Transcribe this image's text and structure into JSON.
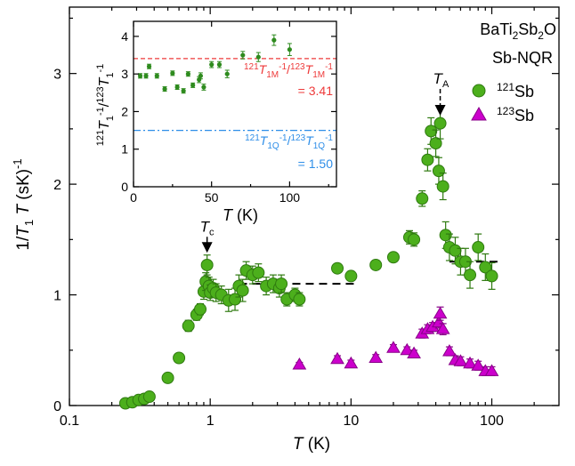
{
  "chart_data": [
    {
      "type": "scatter",
      "x_scale": "log",
      "xlim": [
        0.1,
        300
      ],
      "ylim": [
        0,
        3.6
      ],
      "xlabel": "T (K)",
      "ylabel": "1/T1T (sK)^-1",
      "x_ticks": [
        {
          "value": 0.1,
          "label": "0.1"
        },
        {
          "value": 1,
          "label": "1"
        },
        {
          "value": 10,
          "label": "10"
        },
        {
          "value": 100,
          "label": "100"
        }
      ],
      "y_ticks": [
        {
          "value": 0,
          "label": "0"
        },
        {
          "value": 1,
          "label": "1"
        },
        {
          "value": 2,
          "label": "2"
        },
        {
          "value": 3,
          "label": "3"
        }
      ],
      "annotations": {
        "compound": "BaTi2Sb2O",
        "technique": "Sb-NQR",
        "tc_label": "Tc",
        "ta_label": "TA",
        "tc_x": 0.95,
        "tc_y_tip": 1.38,
        "ta_x": 43,
        "ta_y_tip": 2.62
      },
      "series": [
        {
          "name": "121Sb",
          "marker": "circle",
          "color": "#4caf1c",
          "points": [
            [
              0.25,
              0.02,
              0.01
            ],
            [
              0.28,
              0.03,
              0.01
            ],
            [
              0.31,
              0.05,
              0.01
            ],
            [
              0.34,
              0.06,
              0.01
            ],
            [
              0.37,
              0.08,
              0.02
            ],
            [
              0.5,
              0.25,
              0.02
            ],
            [
              0.6,
              0.43,
              0.03
            ],
            [
              0.7,
              0.72,
              0.05
            ],
            [
              0.8,
              0.82,
              0.05
            ],
            [
              0.85,
              0.87,
              0.05
            ],
            [
              0.9,
              1.03,
              0.07
            ],
            [
              0.93,
              1.12,
              0.08
            ],
            [
              0.95,
              1.27,
              0.09
            ],
            [
              0.98,
              1.08,
              0.08
            ],
            [
              1.0,
              1.02,
              0.07
            ],
            [
              1.05,
              1.06,
              0.08
            ],
            [
              1.1,
              1.02,
              0.08
            ],
            [
              1.2,
              1.0,
              0.08
            ],
            [
              1.35,
              0.95,
              0.1
            ],
            [
              1.5,
              0.96,
              0.1
            ],
            [
              1.6,
              1.08,
              0.1
            ],
            [
              1.7,
              1.04,
              0.1
            ],
            [
              1.8,
              1.22,
              0.08
            ],
            [
              2.0,
              1.18,
              0.08
            ],
            [
              2.2,
              1.2,
              0.08
            ],
            [
              2.5,
              1.08,
              0.08
            ],
            [
              2.8,
              1.1,
              0.08
            ],
            [
              3.1,
              1.06,
              0.08
            ],
            [
              3.2,
              1.1,
              0.08
            ],
            [
              3.5,
              0.96,
              0.06
            ],
            [
              4.0,
              1.0,
              0.06
            ],
            [
              4.3,
              0.96,
              0.06
            ],
            [
              8.0,
              1.24,
              0.04
            ],
            [
              10.0,
              1.17,
              0.04
            ],
            [
              15.0,
              1.27,
              0.04
            ],
            [
              20.0,
              1.34,
              0.04
            ],
            [
              26.0,
              1.52,
              0.06
            ],
            [
              28.0,
              1.5,
              0.06
            ],
            [
              32.0,
              1.87,
              0.07
            ],
            [
              35.0,
              2.22,
              0.1
            ],
            [
              37.0,
              2.48,
              0.12
            ],
            [
              40.0,
              2.37,
              0.12
            ],
            [
              42.0,
              2.12,
              0.12
            ],
            [
              43.0,
              2.55,
              0.14
            ],
            [
              45.0,
              1.98,
              0.12
            ],
            [
              47.0,
              1.54,
              0.12
            ],
            [
              50.0,
              1.43,
              0.12
            ],
            [
              55.0,
              1.4,
              0.12
            ],
            [
              60.0,
              1.3,
              0.12
            ],
            [
              65.0,
              1.3,
              0.12
            ],
            [
              70.0,
              1.18,
              0.12
            ],
            [
              80.0,
              1.43,
              0.12
            ],
            [
              90.0,
              1.25,
              0.12
            ],
            [
              100.0,
              1.17,
              0.12
            ]
          ]
        },
        {
          "name": "123Sb",
          "marker": "triangle",
          "color": "#cc00cc",
          "points": [
            [
              4.3,
              0.37,
              0.02
            ],
            [
              8.0,
              0.42,
              0.03
            ],
            [
              10.0,
              0.38,
              0.03
            ],
            [
              15.0,
              0.43,
              0.03
            ],
            [
              20.0,
              0.52,
              0.03
            ],
            [
              25.0,
              0.5,
              0.03
            ],
            [
              28.0,
              0.47,
              0.03
            ],
            [
              32.0,
              0.65,
              0.04
            ],
            [
              35.0,
              0.69,
              0.04
            ],
            [
              38.0,
              0.71,
              0.04
            ],
            [
              42.0,
              0.75,
              0.05
            ],
            [
              43.0,
              0.83,
              0.06
            ],
            [
              45.0,
              0.69,
              0.05
            ],
            [
              50.0,
              0.49,
              0.04
            ],
            [
              55.0,
              0.41,
              0.04
            ],
            [
              60.0,
              0.4,
              0.04
            ],
            [
              70.0,
              0.38,
              0.04
            ],
            [
              80.0,
              0.36,
              0.04
            ],
            [
              90.0,
              0.31,
              0.04
            ],
            [
              100.0,
              0.31,
              0.04
            ]
          ]
        }
      ],
      "guide_lines": [
        {
          "x": [
            1.6,
            10.5
          ],
          "y": [
            1.1,
            1.1
          ]
        },
        {
          "x": [
            50.0,
            110.0
          ],
          "y": [
            1.3,
            1.3
          ]
        }
      ]
    },
    {
      "type": "scatter",
      "xlim": [
        0,
        130
      ],
      "ylim": [
        0,
        4.4
      ],
      "xlabel": "T (K)",
      "ylabel": "121T1^-1/123T1^-1",
      "x_ticks": [
        {
          "value": 0,
          "label": "0"
        },
        {
          "value": 50,
          "label": "50"
        },
        {
          "value": 100,
          "label": "100"
        }
      ],
      "y_ticks": [
        {
          "value": 0,
          "label": "0"
        },
        {
          "value": 1,
          "label": "1"
        },
        {
          "value": 2,
          "label": "2"
        },
        {
          "value": 3,
          "label": "3"
        },
        {
          "value": 4,
          "label": "4"
        }
      ],
      "series": [
        {
          "name": "",
          "marker": "circle",
          "color": "#2e8b1e",
          "points": [
            [
              4.3,
              2.95,
              0.06
            ],
            [
              8.0,
              2.95,
              0.06
            ],
            [
              10.0,
              3.2,
              0.06
            ],
            [
              15.0,
              2.95,
              0.06
            ],
            [
              20.0,
              2.6,
              0.06
            ],
            [
              25.0,
              3.02,
              0.06
            ],
            [
              28.0,
              2.65,
              0.06
            ],
            [
              32.0,
              2.55,
              0.06
            ],
            [
              35.0,
              3.0,
              0.06
            ],
            [
              38.0,
              2.7,
              0.06
            ],
            [
              42.0,
              2.85,
              0.08
            ],
            [
              43.0,
              2.95,
              0.08
            ],
            [
              45.0,
              2.65,
              0.08
            ],
            [
              50.0,
              3.25,
              0.08
            ],
            [
              55.0,
              3.25,
              0.08
            ],
            [
              60.0,
              3.0,
              0.1
            ],
            [
              70.0,
              3.5,
              0.1
            ],
            [
              80.0,
              3.45,
              0.12
            ],
            [
              90.0,
              3.9,
              0.14
            ],
            [
              100.0,
              3.65,
              0.16
            ]
          ]
        }
      ],
      "reference_lines": [
        {
          "y": 3.41,
          "color": "#ee3a3a",
          "style": "dashed",
          "label_ratio": "121T1M^-1/123T1M^-1",
          "label_value": "= 3.41"
        },
        {
          "y": 1.5,
          "color": "#2e8ee8",
          "style": "dashdot",
          "label_ratio": "121T1Q^-1/123T1Q^-1",
          "label_value": "= 1.50"
        }
      ]
    }
  ]
}
